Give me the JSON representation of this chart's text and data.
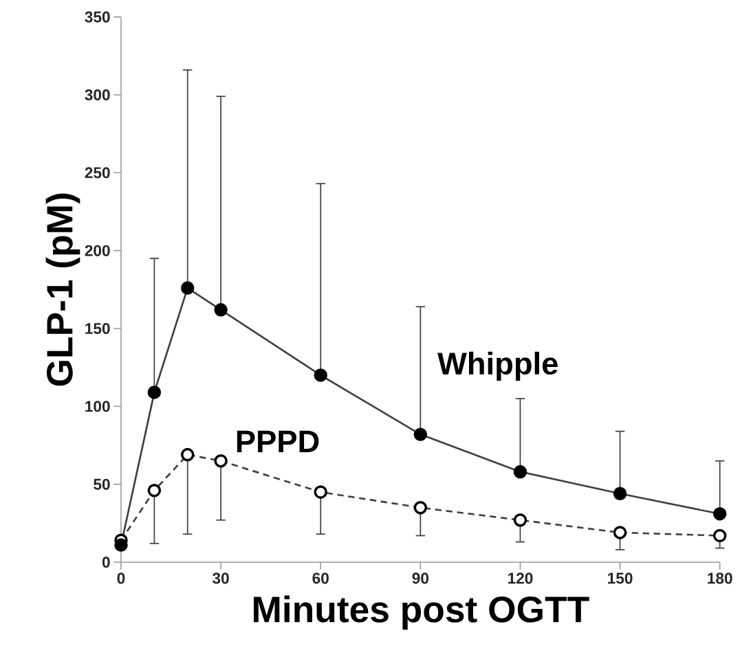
{
  "chart_data": {
    "type": "line",
    "xlabel": "Minutes post OGTT",
    "ylabel": "GLP-1 (pM)",
    "xlim": [
      0,
      180
    ],
    "xticks": [
      0,
      30,
      60,
      90,
      120,
      150,
      180
    ],
    "ylim": [
      0,
      350
    ],
    "yticks": [
      0,
      50,
      100,
      150,
      200,
      250,
      300,
      350
    ],
    "x": [
      0,
      10,
      20,
      30,
      60,
      90,
      120,
      150,
      180
    ],
    "series": [
      {
        "name": "Whipple",
        "color": "#404040",
        "marker": "circle",
        "line_style": "solid",
        "values": [
          11,
          109,
          176,
          162,
          120,
          82,
          58,
          44,
          31
        ],
        "errors": [
          null,
          [
            109,
            195
          ],
          [
            176,
            316
          ],
          [
            162,
            299
          ],
          [
            120,
            243
          ],
          [
            82,
            164
          ],
          [
            58,
            105
          ],
          [
            44,
            84
          ],
          [
            31,
            65
          ]
        ]
      },
      {
        "name": "PPPD",
        "color": "#404040",
        "marker": "circle",
        "line_style": "dashed",
        "values": [
          14,
          46,
          69,
          65,
          45,
          35,
          27,
          19,
          17
        ],
        "errors": [
          null,
          [
            12,
            46
          ],
          [
            18,
            69
          ],
          [
            27,
            65
          ],
          [
            18,
            45
          ],
          [
            17,
            35
          ],
          [
            13,
            27
          ],
          [
            8,
            19
          ],
          [
            9,
            17
          ]
        ]
      }
    ],
    "grid": false
  }
}
